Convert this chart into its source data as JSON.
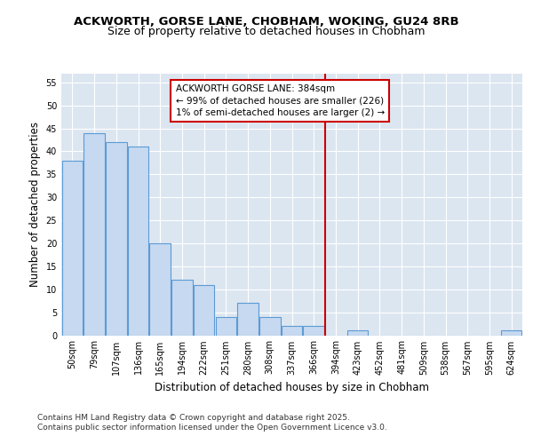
{
  "title_line1": "ACKWORTH, GORSE LANE, CHOBHAM, WOKING, GU24 8RB",
  "title_line2": "Size of property relative to detached houses in Chobham",
  "xlabel": "Distribution of detached houses by size in Chobham",
  "ylabel": "Number of detached properties",
  "categories": [
    "50sqm",
    "79sqm",
    "107sqm",
    "136sqm",
    "165sqm",
    "194sqm",
    "222sqm",
    "251sqm",
    "280sqm",
    "308sqm",
    "337sqm",
    "366sqm",
    "394sqm",
    "423sqm",
    "452sqm",
    "481sqm",
    "509sqm",
    "538sqm",
    "567sqm",
    "595sqm",
    "624sqm"
  ],
  "values": [
    38,
    44,
    42,
    41,
    20,
    12,
    11,
    4,
    7,
    4,
    2,
    2,
    0,
    1,
    0,
    0,
    0,
    0,
    0,
    0,
    1
  ],
  "bar_color": "#c6d9f0",
  "bar_edge_color": "#5b9bd5",
  "vline_color": "#cc0000",
  "annotation_text": "ACKWORTH GORSE LANE: 384sqm\n← 99% of detached houses are smaller (226)\n1% of semi-detached houses are larger (2) →",
  "annotation_box_color": "#ffffff",
  "annotation_box_edge": "#cc0000",
  "ylim": [
    0,
    57
  ],
  "yticks": [
    0,
    5,
    10,
    15,
    20,
    25,
    30,
    35,
    40,
    45,
    50,
    55
  ],
  "background_color": "#ffffff",
  "plot_background": "#dce6f1",
  "grid_color": "#ffffff",
  "footer_line1": "Contains HM Land Registry data © Crown copyright and database right 2025.",
  "footer_line2": "Contains public sector information licensed under the Open Government Licence v3.0.",
  "title_fontsize": 9.5,
  "subtitle_fontsize": 9,
  "axis_label_fontsize": 8.5,
  "tick_fontsize": 7,
  "annotation_fontsize": 7.5,
  "footer_fontsize": 6.5,
  "vline_index": 12
}
